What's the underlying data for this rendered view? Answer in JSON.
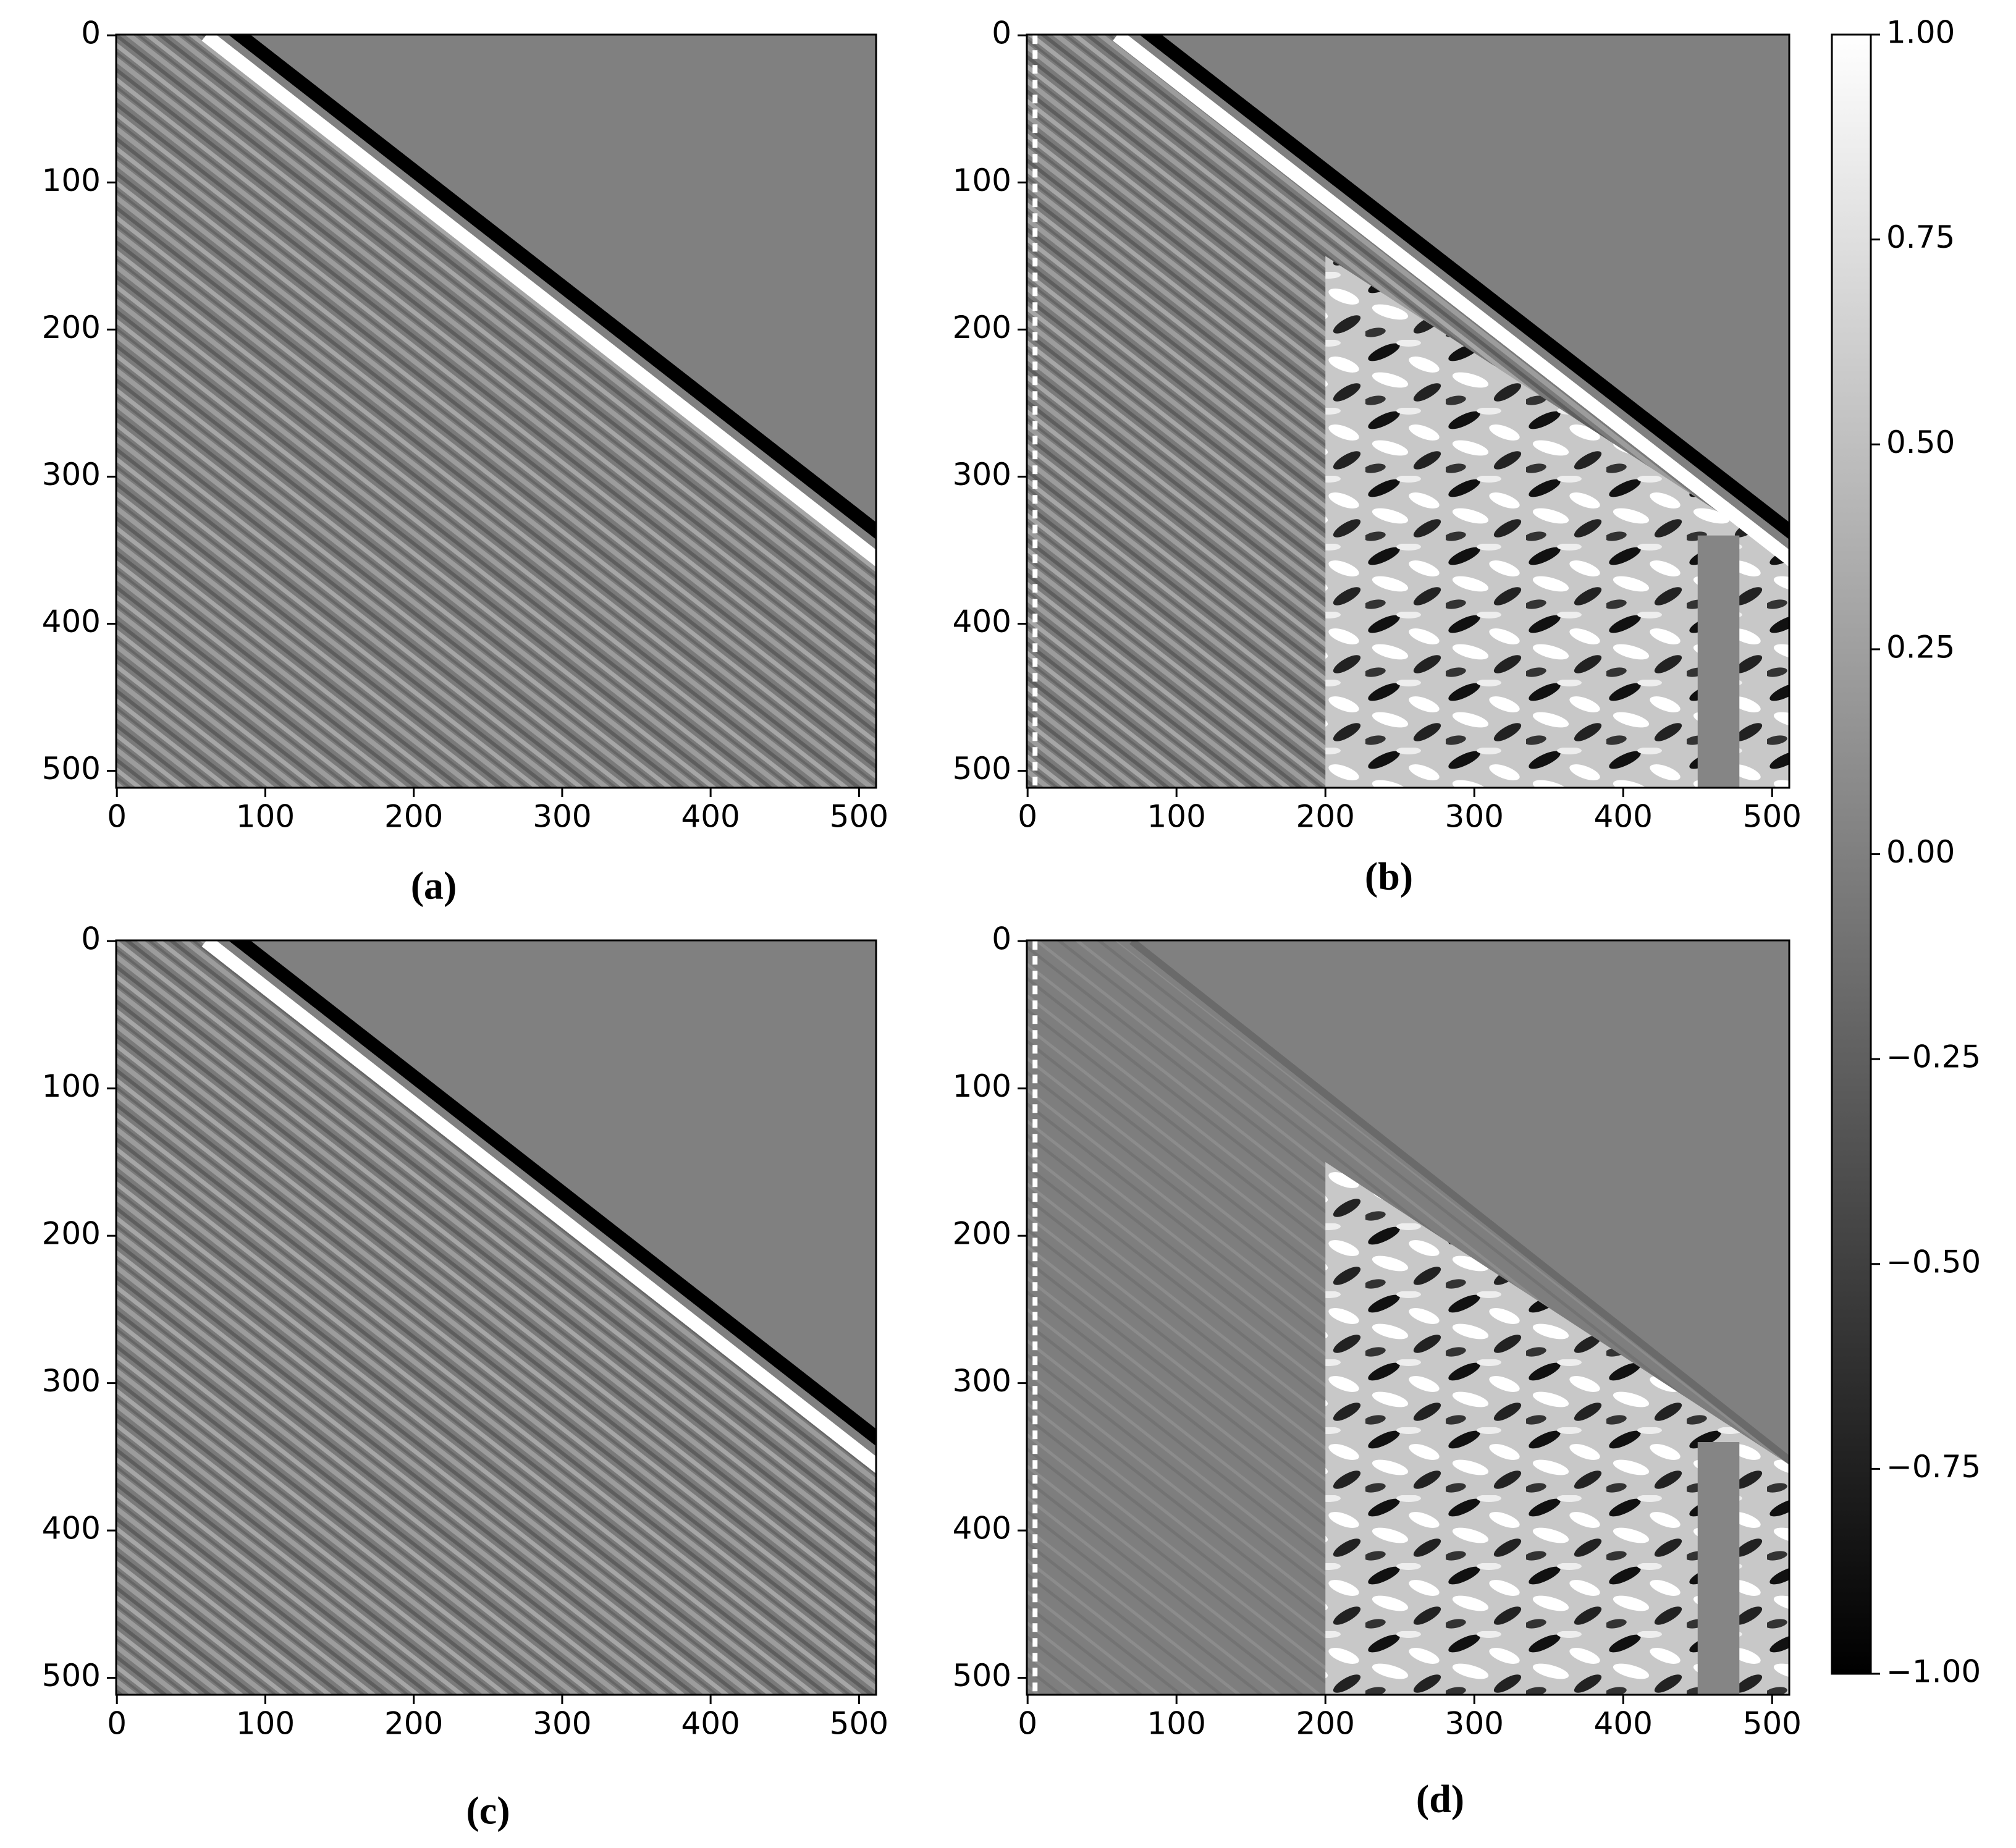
{
  "chart_data": [
    {
      "type": "heatmap",
      "caption": "(a)",
      "xlim": [
        -0.5,
        511.5
      ],
      "ylim": [
        511.5,
        -0.5
      ],
      "xticks": [
        0,
        100,
        200,
        300,
        400,
        500
      ],
      "yticks": [
        0,
        100,
        200,
        300,
        400,
        500
      ]
    },
    {
      "type": "heatmap",
      "caption": "(b)",
      "xlim": [
        -0.5,
        511.5
      ],
      "ylim": [
        511.5,
        -0.5
      ],
      "xticks": [
        0,
        100,
        200,
        300,
        400,
        500
      ],
      "yticks": [
        0,
        100,
        200,
        300,
        400,
        500
      ]
    },
    {
      "type": "heatmap",
      "caption": "(c)",
      "xlim": [
        -0.5,
        511.5
      ],
      "ylim": [
        511.5,
        -0.5
      ],
      "xticks": [
        0,
        100,
        200,
        300,
        400,
        500
      ],
      "yticks": [
        0,
        100,
        200,
        300,
        400,
        500
      ]
    },
    {
      "type": "heatmap",
      "caption": "(d)",
      "xlim": [
        -0.5,
        511.5
      ],
      "ylim": [
        511.5,
        -0.5
      ],
      "xticks": [
        0,
        100,
        200,
        300,
        400,
        500
      ],
      "yticks": [
        0,
        100,
        200,
        300,
        400,
        500
      ]
    }
  ],
  "colorbar": {
    "clim": [
      -1,
      1
    ],
    "ticks": [
      {
        "value": 1,
        "label": "1.00"
      },
      {
        "value": 0.75,
        "label": "0.75"
      },
      {
        "value": 0.5,
        "label": "0.50"
      },
      {
        "value": 0.25,
        "label": "0.25"
      },
      {
        "value": 0,
        "label": "0.00"
      },
      {
        "value": -0.25,
        "label": "−0.25"
      },
      {
        "value": -0.5,
        "label": "−0.50"
      },
      {
        "value": -0.75,
        "label": "−0.75"
      },
      {
        "value": -1,
        "label": "−1.00"
      }
    ]
  }
}
